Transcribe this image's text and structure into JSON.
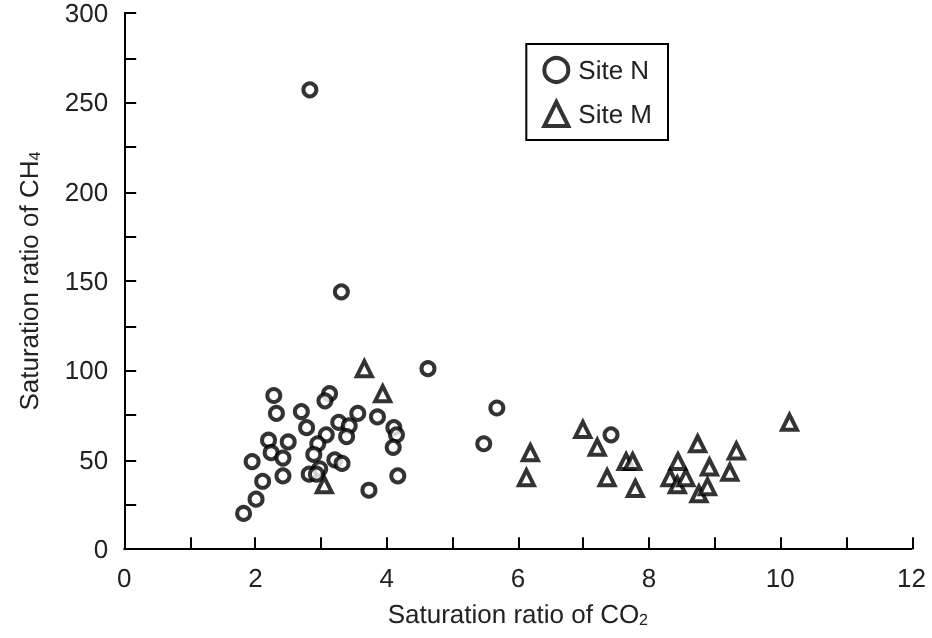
{
  "chart_data": {
    "type": "scatter",
    "xlabel": "Saturation ratio of CO$_{2}$",
    "ylabel": "Saturation ratio of CH$_{4}$",
    "xlim": [
      0,
      12
    ],
    "ylim": [
      0,
      300
    ],
    "xticks": [
      0,
      {
        "value": 1,
        "label": null
      },
      2,
      {
        "value": 3,
        "label": null
      },
      4,
      {
        "value": 5,
        "label": null
      },
      6,
      {
        "value": 7,
        "label": null
      },
      8,
      {
        "value": 9,
        "label": null
      },
      10,
      {
        "value": 11,
        "label": null
      },
      12
    ],
    "yticks": [
      0,
      {
        "value": 25,
        "label": null
      },
      50,
      {
        "value": 75,
        "label": null
      },
      100,
      {
        "value": 125,
        "label": null
      },
      150,
      {
        "value": 175,
        "label": null
      },
      200,
      {
        "value": 225,
        "label": null
      },
      250,
      {
        "value": 275,
        "label": null
      },
      300
    ],
    "grid": false,
    "legend": "top right",
    "series": [
      {
        "name": "Site N",
        "color": "#000000",
        "marker": "circle",
        "x": [
          2.83,
          3.31,
          4.63,
          5.68,
          5.48,
          7.42,
          2.28,
          3.13,
          3.06,
          2.32,
          2.7,
          3.56,
          2.78,
          3.27,
          3.43,
          3.39,
          3.86,
          4.11,
          4.15,
          4.1,
          4.17,
          3.08,
          2.95,
          2.89,
          3.21,
          3.32,
          2.98,
          2.82,
          2.93,
          2.2,
          2.24,
          2.5,
          2.42,
          2.42,
          1.95,
          2.11,
          2.01,
          1.82,
          3.73
        ],
        "values": [
          257,
          144,
          101,
          79,
          59,
          64,
          86,
          87,
          83,
          76,
          77,
          76,
          68,
          71,
          69,
          63,
          74,
          68,
          64,
          57,
          41,
          64,
          59,
          53,
          50,
          48,
          45,
          42,
          42,
          61,
          54,
          60,
          51,
          41,
          49,
          38,
          28,
          20,
          33
        ]
      },
      {
        "name": "Site M",
        "color": "#000000",
        "marker": "triangle",
        "x": [
          3.66,
          3.94,
          3.05,
          6.19,
          6.13,
          6.99,
          7.21,
          7.36,
          7.65,
          7.75,
          7.79,
          8.32,
          8.44,
          8.43,
          8.56,
          8.74,
          8.76,
          8.89,
          8.92,
          9.23,
          9.33,
          10.14
        ],
        "values": [
          101,
          87,
          36,
          54,
          40,
          67,
          57,
          40,
          49,
          49,
          34,
          40,
          49,
          36,
          40,
          59,
          31,
          35,
          46,
          43,
          55,
          71
        ]
      }
    ]
  }
}
